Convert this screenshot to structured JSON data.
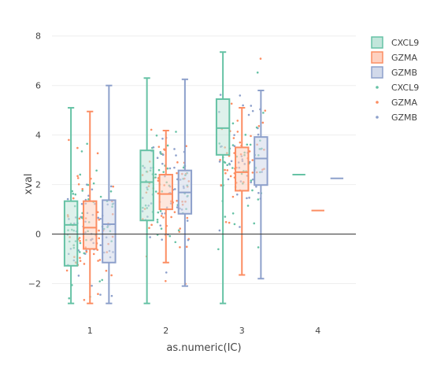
{
  "chart_data": {
    "type": "box",
    "xlabel": "as.numeric(IC)",
    "ylabel": "xval",
    "title": "",
    "xlim": [
      0.5,
      4.5
    ],
    "ylim": [
      -3.0,
      8.5
    ],
    "x_ticks": [
      "1",
      "2",
      "3",
      "4"
    ],
    "y_ticks": [
      -2,
      0,
      2,
      4,
      6,
      8
    ],
    "zero_line": true,
    "grid": true,
    "legend_position": "right",
    "series": [
      {
        "name": "CXCL9",
        "color": "#66c2a5",
        "fill": "#c2e6db",
        "offset": -0.25,
        "boxes": [
          {
            "x": 1,
            "min": -2.8,
            "q1": -1.28,
            "median": 0.37,
            "q3": 1.33,
            "max": 5.1
          },
          {
            "x": 2,
            "min": -2.8,
            "q1": 0.55,
            "median": 2.1,
            "q3": 3.38,
            "max": 6.3
          },
          {
            "x": 3,
            "min": -2.8,
            "q1": 3.2,
            "median": 4.28,
            "q3": 5.45,
            "max": 7.35
          },
          {
            "x": 4,
            "min": 2.4,
            "q1": 2.4,
            "median": 2.4,
            "q3": 2.4,
            "max": 2.4
          }
        ]
      },
      {
        "name": "GZMA",
        "color": "#fc8d62",
        "fill": "#fed1c0",
        "offset": 0,
        "boxes": [
          {
            "x": 1,
            "min": -2.8,
            "q1": -0.6,
            "median": 0.26,
            "q3": 1.33,
            "max": 4.95
          },
          {
            "x": 2,
            "min": -1.15,
            "q1": 1.0,
            "median": 1.62,
            "q3": 2.4,
            "max": 4.18
          },
          {
            "x": 3,
            "min": -1.65,
            "q1": 1.75,
            "median": 2.5,
            "q3": 3.5,
            "max": 5.1
          },
          {
            "x": 4,
            "min": 0.95,
            "q1": 0.95,
            "median": 0.95,
            "q3": 0.95,
            "max": 0.95
          }
        ]
      },
      {
        "name": "GZMB",
        "color": "#8da0cb",
        "fill": "#d1d9ea",
        "offset": 0.25,
        "boxes": [
          {
            "x": 1,
            "min": -2.8,
            "q1": -1.15,
            "median": 0.4,
            "q3": 1.37,
            "max": 6.0
          },
          {
            "x": 2,
            "min": -2.1,
            "q1": 0.82,
            "median": 1.68,
            "q3": 2.57,
            "max": 6.25
          },
          {
            "x": 3,
            "min": -1.8,
            "q1": 1.98,
            "median": 3.05,
            "q3": 3.92,
            "max": 5.8
          },
          {
            "x": 4,
            "min": 2.25,
            "q1": 2.25,
            "median": 2.25,
            "q3": 2.25,
            "max": 2.25
          }
        ]
      }
    ],
    "points": {
      "type": "scatter",
      "series": [
        {
          "name": "CXCL9",
          "color": "#66c2a5"
        },
        {
          "name": "GZMA",
          "color": "#fc8d62"
        },
        {
          "name": "GZMB",
          "color": "#8da0cb"
        }
      ],
      "clusters": [
        {
          "x": 1,
          "n": 150,
          "mean": 0.2,
          "sd": 1.4
        },
        {
          "x": 2,
          "n": 150,
          "mean": 1.7,
          "sd": 1.3
        },
        {
          "x": 3,
          "n": 130,
          "mean": 3.0,
          "sd": 1.5
        }
      ]
    }
  },
  "legend": {
    "items": [
      {
        "label": "CXCL9",
        "kind": "box",
        "series": 0
      },
      {
        "label": "GZMA",
        "kind": "box",
        "series": 1
      },
      {
        "label": "GZMB",
        "kind": "box",
        "series": 2
      },
      {
        "label": "CXCL9",
        "kind": "point",
        "series": 0
      },
      {
        "label": "GZMA",
        "kind": "point",
        "series": 1
      },
      {
        "label": "GZMB",
        "kind": "point",
        "series": 2
      }
    ]
  }
}
